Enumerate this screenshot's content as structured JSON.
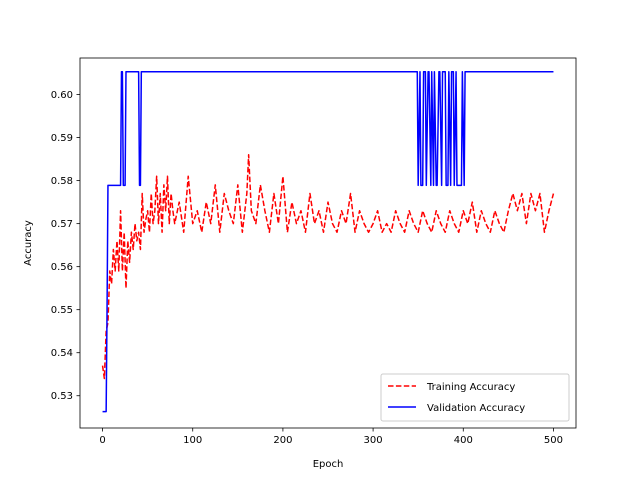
{
  "chart_data": {
    "type": "line",
    "title": "",
    "xlabel": "Epoch",
    "ylabel": "Accuracy",
    "xlim": [
      -25,
      525
    ],
    "ylim": [
      0.5225,
      0.6085
    ],
    "x_ticks": [
      0,
      100,
      200,
      300,
      400,
      500
    ],
    "y_ticks": [
      0.53,
      0.54,
      0.55,
      0.56,
      0.57,
      0.58,
      0.59,
      0.6
    ],
    "y_tick_labels": [
      "0.53",
      "0.54",
      "0.55",
      "0.56",
      "0.57",
      "0.58",
      "0.59",
      "0.60"
    ],
    "grid": false,
    "legend_position": "lower-right",
    "series": [
      {
        "name": "Training Accuracy",
        "color": "#ff0000",
        "style": "dashed",
        "x": [
          0,
          2,
          4,
          6,
          8,
          10,
          12,
          14,
          16,
          18,
          20,
          22,
          24,
          26,
          28,
          30,
          32,
          34,
          36,
          38,
          40,
          42,
          44,
          46,
          48,
          50,
          52,
          54,
          56,
          58,
          60,
          62,
          64,
          66,
          68,
          70,
          72,
          74,
          76,
          78,
          80,
          85,
          90,
          95,
          100,
          105,
          110,
          115,
          120,
          125,
          130,
          135,
          140,
          145,
          150,
          155,
          160,
          162,
          165,
          170,
          175,
          180,
          185,
          190,
          195,
          200,
          205,
          210,
          215,
          220,
          225,
          230,
          235,
          240,
          245,
          250,
          255,
          260,
          265,
          270,
          275,
          280,
          285,
          290,
          295,
          300,
          305,
          310,
          315,
          320,
          325,
          330,
          335,
          340,
          345,
          350,
          355,
          360,
          365,
          370,
          375,
          380,
          385,
          390,
          395,
          400,
          405,
          410,
          415,
          420,
          425,
          430,
          435,
          440,
          445,
          450,
          455,
          460,
          465,
          470,
          475,
          480,
          485,
          490,
          495,
          500
        ],
        "values": [
          0.537,
          0.534,
          0.545,
          0.547,
          0.559,
          0.556,
          0.564,
          0.559,
          0.566,
          0.559,
          0.573,
          0.559,
          0.568,
          0.555,
          0.566,
          0.561,
          0.568,
          0.564,
          0.57,
          0.566,
          0.568,
          0.564,
          0.577,
          0.568,
          0.571,
          0.573,
          0.568,
          0.577,
          0.57,
          0.573,
          0.581,
          0.57,
          0.577,
          0.568,
          0.579,
          0.573,
          0.581,
          0.57,
          0.577,
          0.573,
          0.57,
          0.575,
          0.568,
          0.581,
          0.57,
          0.573,
          0.568,
          0.575,
          0.57,
          0.579,
          0.568,
          0.577,
          0.573,
          0.57,
          0.579,
          0.568,
          0.577,
          0.586,
          0.573,
          0.57,
          0.579,
          0.573,
          0.568,
          0.577,
          0.57,
          0.581,
          0.568,
          0.575,
          0.57,
          0.573,
          0.568,
          0.577,
          0.57,
          0.573,
          0.568,
          0.575,
          0.57,
          0.568,
          0.573,
          0.57,
          0.577,
          0.568,
          0.573,
          0.57,
          0.568,
          0.57,
          0.573,
          0.568,
          0.57,
          0.568,
          0.573,
          0.57,
          0.568,
          0.573,
          0.57,
          0.568,
          0.573,
          0.57,
          0.568,
          0.573,
          0.57,
          0.568,
          0.573,
          0.57,
          0.568,
          0.573,
          0.57,
          0.575,
          0.568,
          0.573,
          0.57,
          0.568,
          0.573,
          0.57,
          0.568,
          0.573,
          0.577,
          0.573,
          0.577,
          0.57,
          0.577,
          0.573,
          0.577,
          0.568,
          0.573,
          0.577
        ]
      },
      {
        "name": "Validation Accuracy",
        "color": "#0000ff",
        "style": "solid",
        "x": [
          0,
          4,
          5,
          6,
          7,
          20,
          21,
          22,
          23,
          24,
          25,
          26,
          27,
          28,
          40,
          41,
          42,
          43,
          44,
          45,
          349,
          350,
          352,
          353,
          355,
          356,
          358,
          359,
          361,
          362,
          364,
          365,
          367,
          368,
          370,
          371,
          373,
          374,
          376,
          377,
          380,
          381,
          383,
          384,
          386,
          387,
          389,
          390,
          392,
          393,
          395,
          396,
          398,
          399,
          401,
          402,
          404,
          405,
          500
        ],
        "values": [
          0.5263,
          0.5263,
          0.55,
          0.5789,
          0.5789,
          0.5789,
          0.6053,
          0.6053,
          0.5789,
          0.5789,
          0.5789,
          0.6053,
          0.6053,
          0.6053,
          0.6053,
          0.5789,
          0.5789,
          0.6053,
          0.6053,
          0.6053,
          0.6053,
          0.5789,
          0.6053,
          0.5789,
          0.5789,
          0.6053,
          0.6053,
          0.5789,
          0.6053,
          0.6053,
          0.5789,
          0.6053,
          0.5789,
          0.6053,
          0.5789,
          0.5789,
          0.6053,
          0.6053,
          0.5789,
          0.6053,
          0.6053,
          0.5789,
          0.5789,
          0.6053,
          0.5789,
          0.6053,
          0.6053,
          0.5789,
          0.6053,
          0.5789,
          0.5789,
          0.5789,
          0.5789,
          0.6053,
          0.5789,
          0.6053,
          0.6053,
          0.6053,
          0.6053
        ]
      }
    ]
  }
}
